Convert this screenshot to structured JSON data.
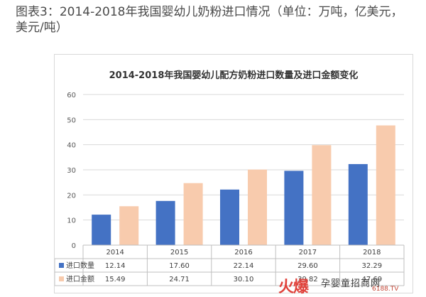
{
  "outer_title": "图表3：2014-2018年我国婴幼儿奶粉进口情况（单位：万吨，亿美元，美元/吨）",
  "watermark": {
    "brand": "火爆",
    "site": "孕婴童招商网",
    "url": "6188.TV"
  },
  "colors": {
    "series_1": "#4472c4",
    "series_2": "#f8cbad"
  },
  "chart_data": {
    "type": "bar",
    "title": "2014-2018年我国婴幼儿配方奶粉进口数量及进口金额变化",
    "categories": [
      "2014",
      "2015",
      "2016",
      "2017",
      "2018"
    ],
    "series": [
      {
        "name": "进口数量",
        "values": [
          12.14,
          17.6,
          22.14,
          29.6,
          32.29
        ],
        "labels": [
          "12.14",
          "17.60",
          "22.14",
          "29.60",
          "32.29"
        ]
      },
      {
        "name": "进口金额",
        "values": [
          15.49,
          24.71,
          30.1,
          39.82,
          47.69
        ],
        "labels": [
          "15.49",
          "24.71",
          "30.10",
          "39.82",
          "47.69"
        ]
      }
    ],
    "ylim": [
      0,
      60
    ],
    "yticks": [
      0,
      10,
      20,
      30,
      40,
      50,
      60
    ],
    "grid": true,
    "legend": "data-table"
  }
}
